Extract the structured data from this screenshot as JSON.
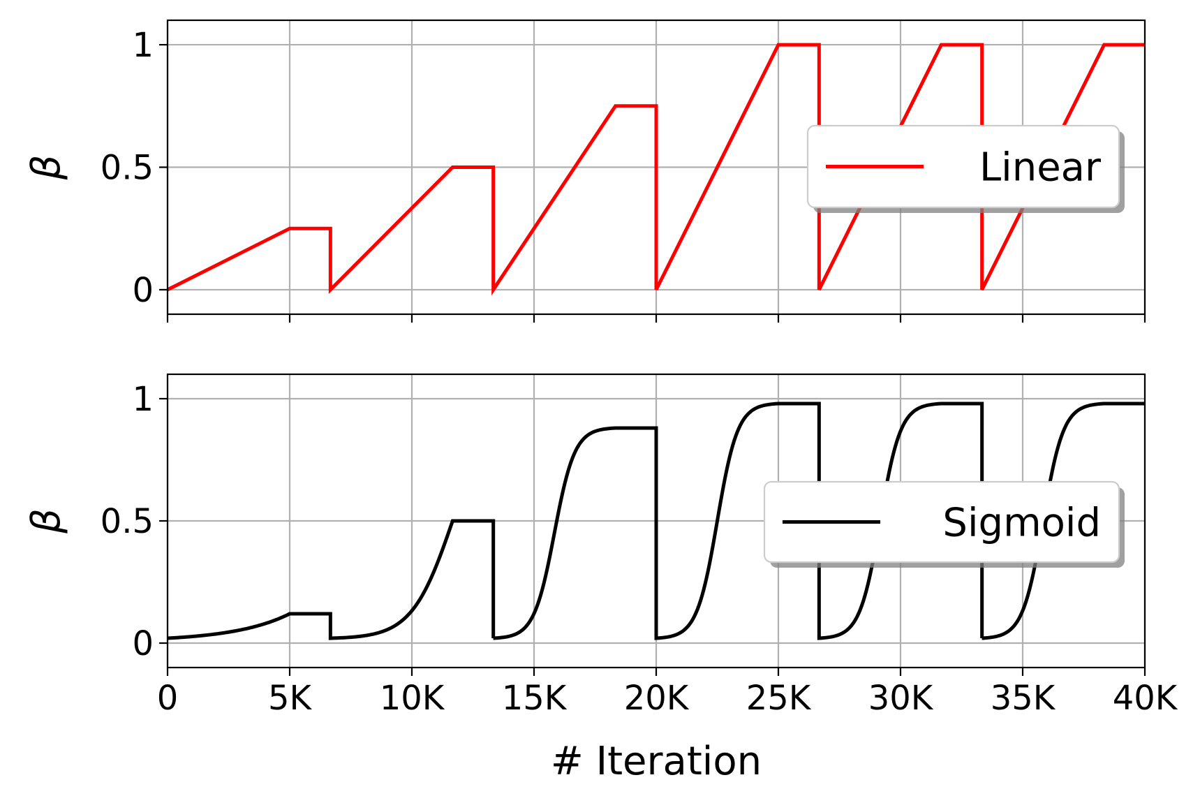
{
  "chart_data": [
    {
      "type": "line",
      "panel": "top",
      "title": "",
      "xlabel": "",
      "ylabel": "β",
      "xlim": [
        0,
        40000
      ],
      "ylim": [
        -0.1,
        1.1
      ],
      "grid": true,
      "legend_position": "center-right",
      "x_tick_values": [
        0,
        5000,
        10000,
        15000,
        20000,
        25000,
        30000,
        35000,
        40000
      ],
      "x_tick_labels": [
        "",
        "",
        "",
        "",
        "",
        "",
        "",
        "",
        ""
      ],
      "y_tick_values": [
        0,
        0.5,
        1
      ],
      "y_tick_labels": [
        "0",
        "0.5",
        "1"
      ],
      "cycle_starts": [
        0,
        6667,
        13333,
        20000,
        26667,
        33333
      ],
      "cycle_length": 6667,
      "ramp_end_fraction": 0.75,
      "plateau_levels": [
        0.25,
        0.5,
        0.75,
        1.0,
        1.0,
        1.0
      ],
      "series": [
        {
          "name": "Linear",
          "color": "#ff0000",
          "shape": "linear",
          "x": [
            0,
            5000,
            6667,
            6667,
            11667,
            13333,
            13333,
            18333,
            20000,
            20000,
            25000,
            26667,
            26667,
            31667,
            33333,
            33333,
            38333,
            40000
          ],
          "y": [
            0,
            0.25,
            0.25,
            0,
            0.5,
            0.5,
            0,
            0.75,
            0.75,
            0,
            1,
            1,
            0,
            1,
            1,
            0,
            1,
            1
          ]
        }
      ]
    },
    {
      "type": "line",
      "panel": "bottom",
      "title": "",
      "xlabel": "# Iteration",
      "ylabel": "β",
      "xlim": [
        0,
        40000
      ],
      "ylim": [
        -0.1,
        1.1
      ],
      "grid": true,
      "legend_position": "center-right",
      "x_tick_values": [
        0,
        5000,
        10000,
        15000,
        20000,
        25000,
        30000,
        35000,
        40000
      ],
      "x_tick_labels": [
        "0",
        "5K",
        "10K",
        "15K",
        "20K",
        "25K",
        "30K",
        "35K",
        "40K"
      ],
      "y_tick_values": [
        0,
        0.5,
        1
      ],
      "y_tick_labels": [
        "0",
        "0.5",
        "1"
      ],
      "cycle_starts": [
        0,
        6667,
        13333,
        20000,
        26667,
        33333
      ],
      "cycle_length": 6667,
      "ramp_end_fraction": 0.75,
      "sigmoid_midpoint_level": [
        0.25,
        0.5,
        0.75,
        1.0,
        1.0,
        1.0
      ],
      "sigmoid_steepness": 12,
      "plateau_levels": [
        0.12,
        0.5,
        0.88,
        0.98,
        0.98,
        0.98
      ],
      "series": [
        {
          "name": "Sigmoid",
          "color": "#000000",
          "shape": "sigmoid",
          "x": [
            0,
            2500,
            5000,
            6667,
            6667,
            10000,
            11667,
            13333,
            13333,
            16667,
            18333,
            20000,
            20000,
            22500,
            25000,
            26667,
            26667,
            30000,
            31667,
            33333,
            33333,
            36667,
            38333,
            40000
          ],
          "y": [
            0.02,
            0.05,
            0.12,
            0.12,
            0.02,
            0.2,
            0.5,
            0.5,
            0.02,
            0.5,
            0.88,
            0.88,
            0.02,
            0.5,
            0.98,
            0.98,
            0.02,
            0.6,
            0.98,
            0.98,
            0.02,
            0.6,
            0.98,
            0.98
          ]
        }
      ]
    }
  ]
}
